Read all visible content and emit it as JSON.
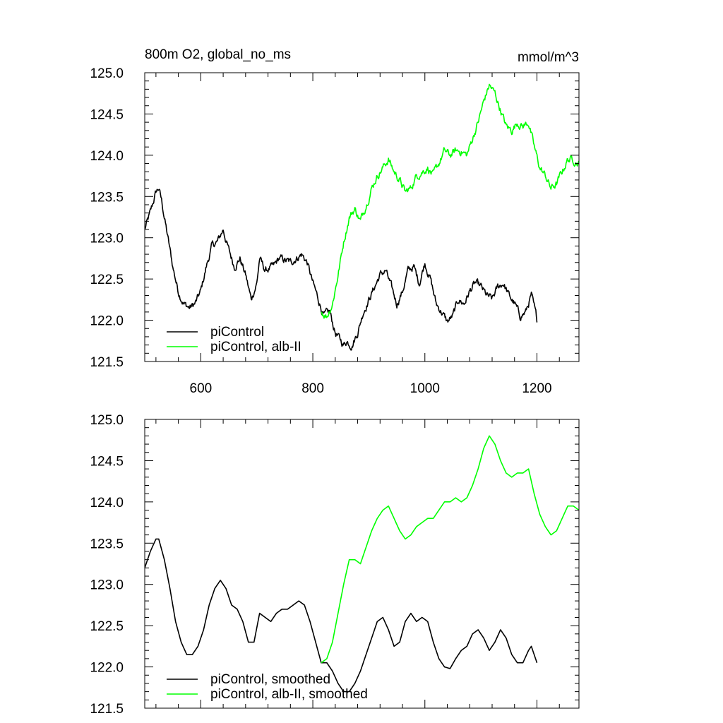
{
  "header": {
    "title_left": "800m O2, global_no_ms",
    "title_right": "mmol/m^3"
  },
  "chart_data": [
    {
      "type": "line",
      "title": "800m O2, global_no_ms",
      "units": "mmol/m^3",
      "xlim": [
        500,
        1275
      ],
      "ylim": [
        121.5,
        125.0
      ],
      "x_ticks": [
        600,
        800,
        1000,
        1200
      ],
      "y_ticks": [
        121.5,
        122.0,
        122.5,
        123.0,
        123.5,
        124.0,
        124.5,
        125.0
      ],
      "y_tick_labels": [
        "121.5",
        "122.0",
        "122.5",
        "123.0",
        "123.5",
        "124.0",
        "124.5",
        "125.0"
      ],
      "x_tick_labels": [
        "600",
        "800",
        "1000",
        "1200"
      ],
      "legend_position": "bottom-left",
      "series": [
        {
          "name": "piControl",
          "color": "#000000",
          "noise": 0.05,
          "points": [
            [
              500,
              123.1
            ],
            [
              510,
              123.3
            ],
            [
              520,
              123.55
            ],
            [
              525,
              123.6
            ],
            [
              530,
              123.45
            ],
            [
              540,
              123.05
            ],
            [
              550,
              122.65
            ],
            [
              560,
              122.35
            ],
            [
              570,
              122.2
            ],
            [
              580,
              122.15
            ],
            [
              590,
              122.2
            ],
            [
              600,
              122.35
            ],
            [
              610,
              122.65
            ],
            [
              620,
              122.9
            ],
            [
              630,
              122.95
            ],
            [
              640,
              123.1
            ],
            [
              650,
              122.85
            ],
            [
              660,
              122.65
            ],
            [
              670,
              122.75
            ],
            [
              680,
              122.55
            ],
            [
              690,
              122.25
            ],
            [
              700,
              122.45
            ],
            [
              705,
              122.75
            ],
            [
              715,
              122.6
            ],
            [
              730,
              122.65
            ],
            [
              740,
              122.75
            ],
            [
              760,
              122.7
            ],
            [
              780,
              122.8
            ],
            [
              790,
              122.7
            ],
            [
              800,
              122.45
            ],
            [
              810,
              122.25
            ],
            [
              820,
              122.05
            ],
            [
              830,
              122.1
            ],
            [
              840,
              121.85
            ],
            [
              855,
              121.7
            ],
            [
              860,
              121.75
            ],
            [
              870,
              121.7
            ],
            [
              880,
              121.85
            ],
            [
              890,
              122.1
            ],
            [
              900,
              122.25
            ],
            [
              910,
              122.4
            ],
            [
              920,
              122.55
            ],
            [
              930,
              122.6
            ],
            [
              940,
              122.4
            ],
            [
              950,
              122.2
            ],
            [
              960,
              122.35
            ],
            [
              970,
              122.6
            ],
            [
              980,
              122.65
            ],
            [
              990,
              122.45
            ],
            [
              1000,
              122.7
            ],
            [
              1010,
              122.5
            ],
            [
              1020,
              122.2
            ],
            [
              1030,
              122.1
            ],
            [
              1040,
              121.98
            ],
            [
              1050,
              122.05
            ],
            [
              1060,
              122.25
            ],
            [
              1070,
              122.2
            ],
            [
              1080,
              122.35
            ],
            [
              1090,
              122.45
            ],
            [
              1100,
              122.4
            ],
            [
              1110,
              122.3
            ],
            [
              1120,
              122.25
            ],
            [
              1130,
              122.4
            ],
            [
              1140,
              122.45
            ],
            [
              1150,
              122.3
            ],
            [
              1160,
              122.2
            ],
            [
              1170,
              122.05
            ],
            [
              1180,
              122.1
            ],
            [
              1190,
              122.3
            ],
            [
              1200,
              122.0
            ]
          ]
        },
        {
          "name": "piControl, alb-II",
          "color": "#00ff00",
          "noise": 0.05,
          "points": [
            [
              815,
              122.1
            ],
            [
              825,
              122.05
            ],
            [
              835,
              122.2
            ],
            [
              845,
              122.55
            ],
            [
              855,
              122.95
            ],
            [
              865,
              123.25
            ],
            [
              875,
              123.35
            ],
            [
              885,
              123.2
            ],
            [
              895,
              123.4
            ],
            [
              905,
              123.6
            ],
            [
              915,
              123.75
            ],
            [
              925,
              123.85
            ],
            [
              935,
              123.95
            ],
            [
              945,
              123.8
            ],
            [
              955,
              123.7
            ],
            [
              965,
              123.55
            ],
            [
              975,
              123.6
            ],
            [
              985,
              123.75
            ],
            [
              995,
              123.8
            ],
            [
              1005,
              123.85
            ],
            [
              1015,
              123.75
            ],
            [
              1025,
              123.9
            ],
            [
              1035,
              124.05
            ],
            [
              1045,
              124.0
            ],
            [
              1055,
              124.05
            ],
            [
              1065,
              124.05
            ],
            [
              1075,
              124.0
            ],
            [
              1085,
              124.2
            ],
            [
              1095,
              124.4
            ],
            [
              1105,
              124.65
            ],
            [
              1115,
              124.85
            ],
            [
              1125,
              124.75
            ],
            [
              1135,
              124.55
            ],
            [
              1145,
              124.35
            ],
            [
              1155,
              124.3
            ],
            [
              1165,
              124.4
            ],
            [
              1175,
              124.35
            ],
            [
              1185,
              124.4
            ],
            [
              1195,
              124.1
            ],
            [
              1205,
              123.85
            ],
            [
              1215,
              123.75
            ],
            [
              1225,
              123.6
            ],
            [
              1235,
              123.65
            ],
            [
              1245,
              123.8
            ],
            [
              1255,
              123.95
            ],
            [
              1265,
              123.95
            ],
            [
              1275,
              123.9
            ]
          ]
        }
      ]
    },
    {
      "type": "line",
      "xlim": [
        500,
        1275
      ],
      "ylim": [
        121.5,
        125.0
      ],
      "x_ticks": [
        600,
        800,
        1000,
        1200
      ],
      "y_ticks": [
        121.5,
        122.0,
        122.5,
        123.0,
        123.5,
        124.0,
        124.5,
        125.0
      ],
      "y_tick_labels": [
        "121.5",
        "122.0",
        "122.5",
        "123.0",
        "123.5",
        "124.0",
        "124.5",
        "125.0"
      ],
      "legend_position": "bottom-left",
      "series": [
        {
          "name": "piControl, smoothed",
          "color": "#000000",
          "noise": 0,
          "points": [
            [
              500,
              123.2
            ],
            [
              510,
              123.4
            ],
            [
              520,
              123.55
            ],
            [
              525,
              123.55
            ],
            [
              535,
              123.3
            ],
            [
              545,
              122.95
            ],
            [
              555,
              122.55
            ],
            [
              565,
              122.3
            ],
            [
              575,
              122.15
            ],
            [
              585,
              122.15
            ],
            [
              595,
              122.25
            ],
            [
              605,
              122.45
            ],
            [
              615,
              122.75
            ],
            [
              625,
              122.95
            ],
            [
              635,
              123.05
            ],
            [
              645,
              122.95
            ],
            [
              655,
              122.75
            ],
            [
              665,
              122.7
            ],
            [
              675,
              122.55
            ],
            [
              685,
              122.3
            ],
            [
              695,
              122.3
            ],
            [
              705,
              122.65
            ],
            [
              715,
              122.6
            ],
            [
              725,
              122.55
            ],
            [
              735,
              122.65
            ],
            [
              745,
              122.7
            ],
            [
              755,
              122.7
            ],
            [
              765,
              122.75
            ],
            [
              775,
              122.8
            ],
            [
              785,
              122.75
            ],
            [
              795,
              122.55
            ],
            [
              805,
              122.3
            ],
            [
              815,
              122.05
            ],
            [
              825,
              122.05
            ],
            [
              835,
              121.95
            ],
            [
              845,
              121.8
            ],
            [
              855,
              121.7
            ],
            [
              865,
              121.7
            ],
            [
              875,
              121.8
            ],
            [
              885,
              121.95
            ],
            [
              895,
              122.15
            ],
            [
              905,
              122.35
            ],
            [
              915,
              122.55
            ],
            [
              925,
              122.6
            ],
            [
              935,
              122.45
            ],
            [
              945,
              122.25
            ],
            [
              955,
              122.3
            ],
            [
              965,
              122.55
            ],
            [
              975,
              122.65
            ],
            [
              985,
              122.55
            ],
            [
              995,
              122.6
            ],
            [
              1005,
              122.55
            ],
            [
              1015,
              122.3
            ],
            [
              1025,
              122.1
            ],
            [
              1035,
              122.0
            ],
            [
              1045,
              121.98
            ],
            [
              1055,
              122.1
            ],
            [
              1065,
              122.2
            ],
            [
              1075,
              122.25
            ],
            [
              1085,
              122.4
            ],
            [
              1095,
              122.45
            ],
            [
              1105,
              122.35
            ],
            [
              1115,
              122.2
            ],
            [
              1125,
              122.3
            ],
            [
              1135,
              122.45
            ],
            [
              1145,
              122.35
            ],
            [
              1155,
              122.15
            ],
            [
              1165,
              122.05
            ],
            [
              1175,
              122.05
            ],
            [
              1185,
              122.2
            ],
            [
              1190,
              122.25
            ],
            [
              1200,
              122.05
            ]
          ]
        },
        {
          "name": "piControl, alb-II, smoothed",
          "color": "#00ff00",
          "noise": 0,
          "points": [
            [
              815,
              122.05
            ],
            [
              825,
              122.1
            ],
            [
              835,
              122.3
            ],
            [
              845,
              122.65
            ],
            [
              855,
              123.0
            ],
            [
              865,
              123.3
            ],
            [
              875,
              123.3
            ],
            [
              885,
              123.25
            ],
            [
              895,
              123.45
            ],
            [
              905,
              123.65
            ],
            [
              915,
              123.8
            ],
            [
              925,
              123.9
            ],
            [
              935,
              123.95
            ],
            [
              945,
              123.8
            ],
            [
              955,
              123.65
            ],
            [
              965,
              123.55
            ],
            [
              975,
              123.6
            ],
            [
              985,
              123.7
            ],
            [
              995,
              123.75
            ],
            [
              1005,
              123.8
            ],
            [
              1015,
              123.8
            ],
            [
              1025,
              123.9
            ],
            [
              1035,
              124.0
            ],
            [
              1045,
              124.0
            ],
            [
              1055,
              124.05
            ],
            [
              1065,
              124.0
            ],
            [
              1075,
              124.05
            ],
            [
              1085,
              124.2
            ],
            [
              1095,
              124.4
            ],
            [
              1105,
              124.65
            ],
            [
              1115,
              124.8
            ],
            [
              1125,
              124.7
            ],
            [
              1135,
              124.5
            ],
            [
              1145,
              124.35
            ],
            [
              1155,
              124.3
            ],
            [
              1165,
              124.35
            ],
            [
              1175,
              124.35
            ],
            [
              1185,
              124.4
            ],
            [
              1195,
              124.1
            ],
            [
              1205,
              123.85
            ],
            [
              1215,
              123.7
            ],
            [
              1225,
              123.6
            ],
            [
              1235,
              123.65
            ],
            [
              1245,
              123.8
            ],
            [
              1255,
              123.95
            ],
            [
              1265,
              123.95
            ],
            [
              1275,
              123.9
            ]
          ]
        }
      ]
    }
  ]
}
